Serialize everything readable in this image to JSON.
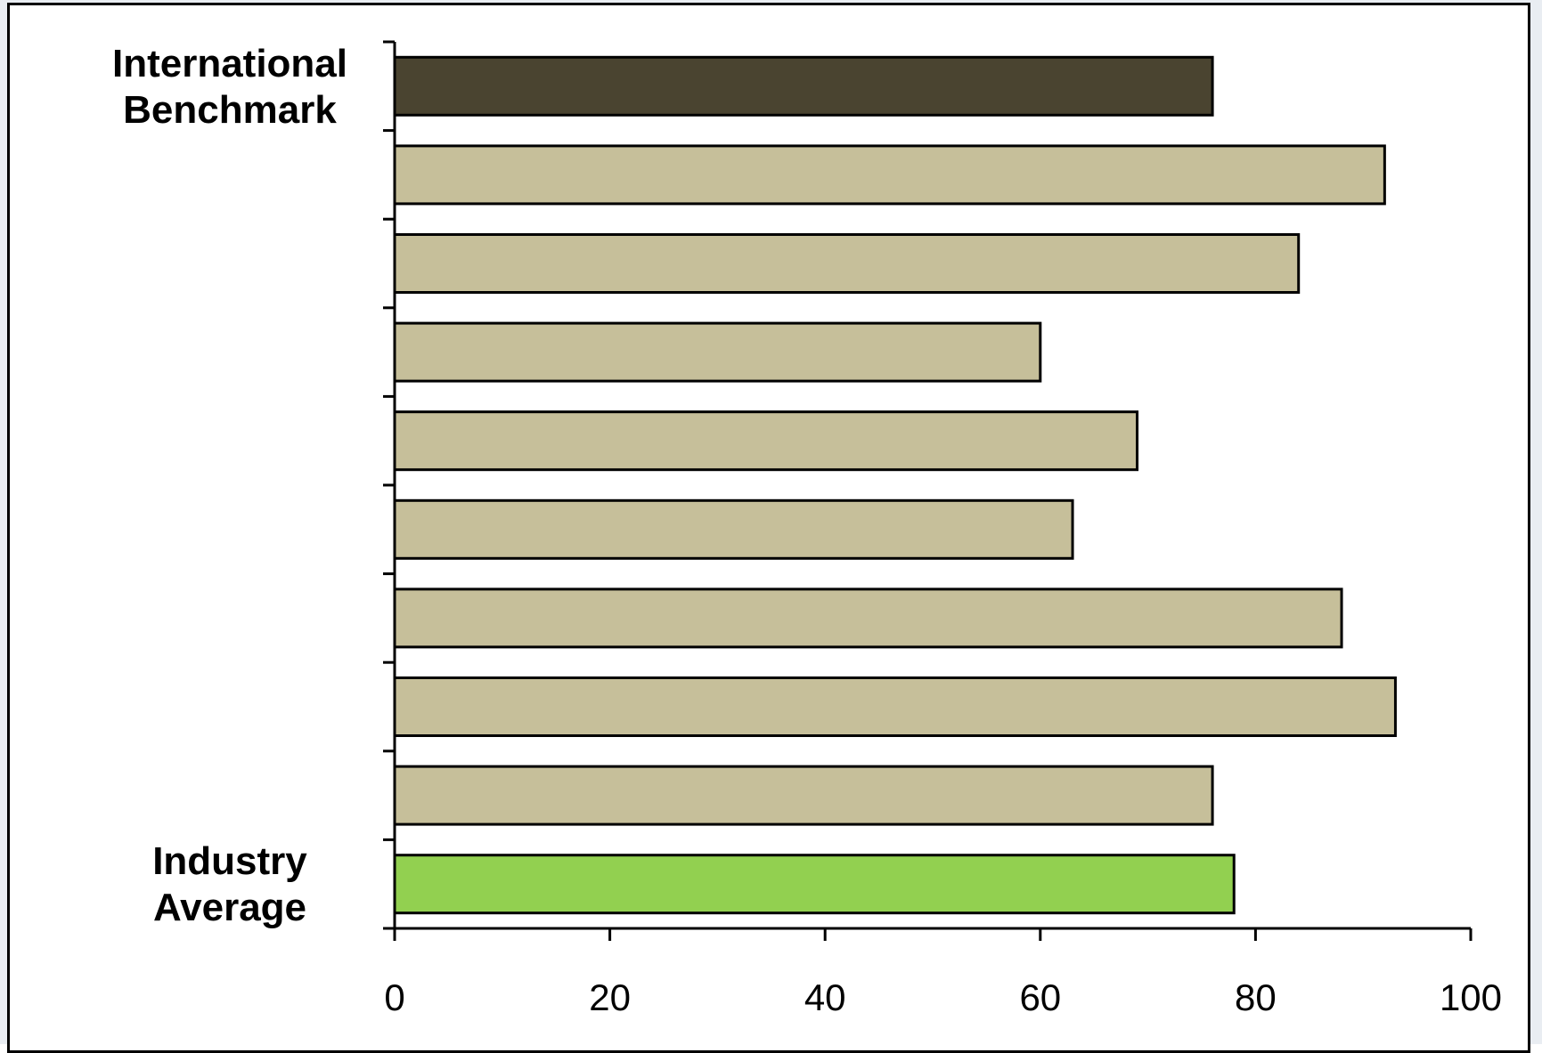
{
  "chart_data": {
    "type": "bar",
    "orientation": "horizontal",
    "categories": [
      "International Benchmark",
      "",
      "",
      "",
      "",
      "",
      "",
      "",
      "",
      "Industry Average"
    ],
    "category_label_lines": [
      [
        "International",
        "Benchmark"
      ],
      [],
      [],
      [],
      [],
      [],
      [],
      [],
      [],
      [
        "Industry",
        "Average"
      ]
    ],
    "values": [
      76,
      92,
      84,
      60,
      69,
      63,
      88,
      93,
      76,
      78
    ],
    "bar_colors": [
      "#4a4430",
      "#c6bf9a",
      "#c6bf9a",
      "#c6bf9a",
      "#c6bf9a",
      "#c6bf9a",
      "#c6bf9a",
      "#c6bf9a",
      "#c6bf9a",
      "#92d050"
    ],
    "xlim": [
      0,
      100
    ],
    "xticks": [
      0,
      20,
      40,
      60,
      80,
      100
    ],
    "xtick_labels": [
      "0",
      "20",
      "40",
      "60",
      "80",
      "100"
    ],
    "title": "",
    "xlabel": "",
    "ylabel": "",
    "grid": false,
    "legend": "none"
  }
}
